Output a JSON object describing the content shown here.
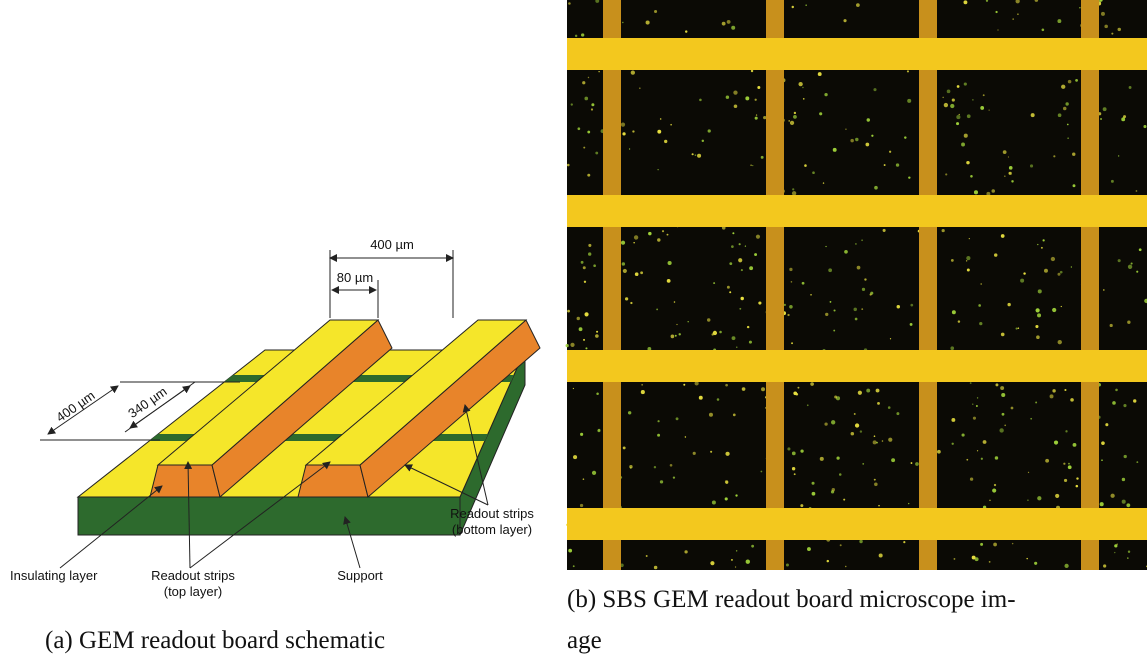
{
  "figure": {
    "panel_a": {
      "dimensions": {
        "strip_pitch": "400 µm",
        "strip_width": "80 µm",
        "bottom_pitch": "400 µm",
        "bottom_width": "340 µm"
      },
      "labels": {
        "insulating": "Insulating layer",
        "top_strips": [
          "Readout strips",
          "(top layer)"
        ],
        "support": "Support",
        "bottom_strips": [
          "Readout strips",
          "(bottom layer)"
        ]
      },
      "caption": "(a) GEM readout board schematic"
    },
    "panel_b": {
      "caption": [
        "(b) SBS GEM readout board microscope im-",
        "age"
      ]
    }
  }
}
